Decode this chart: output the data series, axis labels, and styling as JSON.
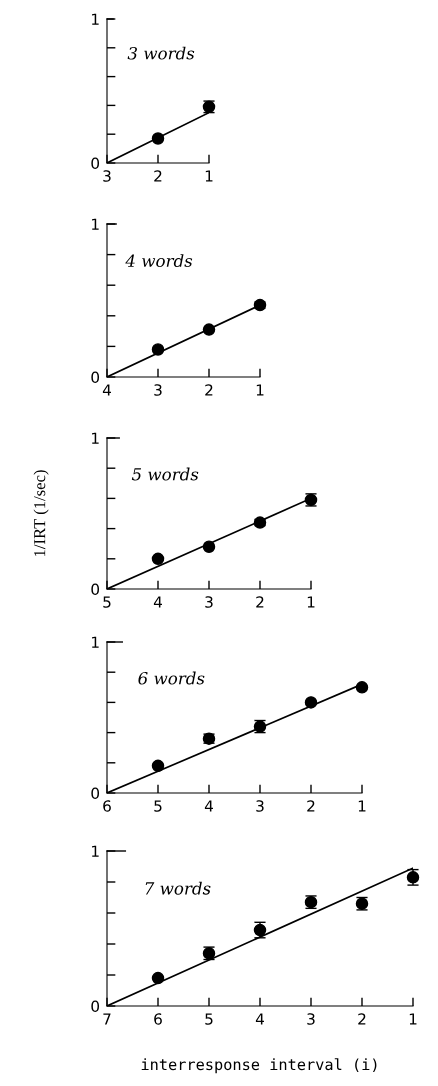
{
  "chart_data": [
    {
      "type": "scatter",
      "title": "3 words",
      "xlim": [
        3,
        1
      ],
      "xticks": [
        3,
        2,
        1
      ],
      "ylim": [
        0,
        1
      ],
      "yticks": [
        0,
        {
          "value": 0.2,
          "label": null
        },
        {
          "value": 0.4,
          "label": null
        },
        {
          "value": 0.6,
          "label": null
        },
        {
          "value": 0.8,
          "label": null
        },
        1
      ],
      "marker": "circle",
      "grid": false,
      "series": [
        {
          "color": "#000000",
          "x": [
            2,
            1
          ],
          "values": [
            0.17,
            0.39
          ],
          "errors": [
            null,
            0.04
          ]
        },
        {
          "type": "line",
          "color": "#000000",
          "x": [
            3,
            1
          ],
          "values": [
            0,
            0.35
          ],
          "marker": "none",
          "line_style": "solid"
        }
      ]
    },
    {
      "type": "scatter",
      "title": "4 words",
      "xlim": [
        4,
        1
      ],
      "xticks": [
        4,
        3,
        2,
        1
      ],
      "ylim": [
        0,
        1
      ],
      "yticks": [
        0,
        {
          "value": 0.2,
          "label": null
        },
        {
          "value": 0.4,
          "label": null
        },
        {
          "value": 0.6,
          "label": null
        },
        {
          "value": 0.8,
          "label": null
        },
        1
      ],
      "marker": "circle",
      "grid": false,
      "series": [
        {
          "color": "#000000",
          "x": [
            3,
            2,
            1
          ],
          "values": [
            0.18,
            0.31,
            0.47
          ],
          "errors": [
            null,
            null,
            0.02
          ]
        },
        {
          "type": "line",
          "color": "#000000",
          "x": [
            4,
            1
          ],
          "values": [
            0,
            0.47
          ],
          "marker": "none",
          "line_style": "solid"
        }
      ]
    },
    {
      "type": "scatter",
      "title": "5 words",
      "ylabel": "1/IRT (1/sec)",
      "xlim": [
        5,
        1
      ],
      "xticks": [
        5,
        4,
        3,
        2,
        1
      ],
      "ylim": [
        0,
        1
      ],
      "yticks": [
        0,
        {
          "value": 0.2,
          "label": null
        },
        {
          "value": 0.4,
          "label": null
        },
        {
          "value": 0.6,
          "label": null
        },
        {
          "value": 0.8,
          "label": null
        },
        1
      ],
      "marker": "circle",
      "grid": false,
      "series": [
        {
          "color": "#000000",
          "x": [
            4,
            3,
            2,
            1
          ],
          "values": [
            0.2,
            0.28,
            0.44,
            0.59
          ],
          "errors": [
            null,
            null,
            0.02,
            0.04
          ]
        },
        {
          "type": "line",
          "color": "#000000",
          "x": [
            5,
            1
          ],
          "values": [
            0,
            0.6
          ],
          "marker": "none",
          "line_style": "solid"
        }
      ]
    },
    {
      "type": "scatter",
      "title": "6 words",
      "xlim": [
        6,
        1
      ],
      "xticks": [
        6,
        5,
        4,
        3,
        2,
        1
      ],
      "ylim": [
        0,
        1
      ],
      "yticks": [
        0,
        {
          "value": 0.2,
          "label": null
        },
        {
          "value": 0.4,
          "label": null
        },
        {
          "value": 0.6,
          "label": null
        },
        {
          "value": 0.8,
          "label": null
        },
        1
      ],
      "marker": "circle",
      "grid": false,
      "series": [
        {
          "color": "#000000",
          "x": [
            5,
            4,
            3,
            2,
            1
          ],
          "values": [
            0.18,
            0.36,
            0.44,
            0.6,
            0.7
          ],
          "errors": [
            null,
            0.03,
            0.04,
            null,
            null
          ]
        },
        {
          "type": "line",
          "color": "#000000",
          "x": [
            6,
            1
          ],
          "values": [
            0,
            0.72
          ],
          "marker": "none",
          "line_style": "solid"
        }
      ]
    },
    {
      "type": "scatter",
      "title": "7 words",
      "xlabel": "interresponse interval (i)",
      "xlim": [
        7,
        1
      ],
      "xticks": [
        7,
        6,
        5,
        4,
        3,
        2,
        1
      ],
      "ylim": [
        0,
        1
      ],
      "yticks": [
        0,
        {
          "value": 0.2,
          "label": null
        },
        {
          "value": 0.4,
          "label": null
        },
        {
          "value": 0.6,
          "label": null
        },
        {
          "value": 0.8,
          "label": null
        },
        1
      ],
      "marker": "circle",
      "grid": false,
      "series": [
        {
          "color": "#000000",
          "x": [
            6,
            5,
            4,
            3,
            2,
            1
          ],
          "values": [
            0.18,
            0.34,
            0.49,
            0.67,
            0.66,
            0.83
          ],
          "errors": [
            null,
            0.04,
            0.05,
            0.04,
            0.04,
            0.05
          ]
        },
        {
          "type": "line",
          "color": "#000000",
          "x": [
            7,
            1
          ],
          "values": [
            0,
            0.89
          ],
          "marker": "none",
          "line_style": "solid"
        }
      ]
    }
  ]
}
